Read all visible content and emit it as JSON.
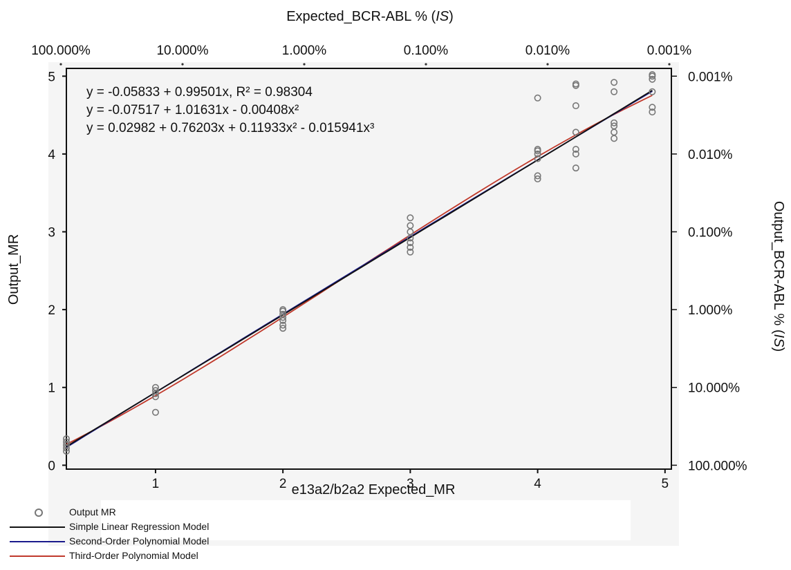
{
  "chart_data": {
    "type": "scatter",
    "xlabel": "e13a2/b2a2 Expected_MR",
    "ylabel": "Output_MR",
    "top_axis_label": "Expected_BCR-ABL % (IS)",
    "right_axis_label": "Output_BCR-ABL % (IS)",
    "xlim": [
      0.3,
      5.05
    ],
    "ylim": [
      -0.05,
      5.1
    ],
    "x_ticks": [
      "1",
      "2",
      "3",
      "4",
      "5"
    ],
    "x_tick_values": [
      1,
      2,
      3,
      4,
      5
    ],
    "y_ticks": [
      "0",
      "1",
      "2",
      "3",
      "4",
      "5"
    ],
    "y_tick_values": [
      0,
      1,
      2,
      3,
      4,
      5
    ],
    "top_ticks": [
      "100.000%",
      "10.000%",
      "1.000%",
      "0.100%",
      "0.010%",
      "0.001%"
    ],
    "top_tick_values": [
      0,
      1,
      2,
      3,
      4,
      5
    ],
    "right_ticks": [
      "0.001%",
      "0.010%",
      "0.100%",
      "1.000%",
      "10.000%",
      "100.000%"
    ],
    "right_tick_values": [
      5,
      4,
      3,
      2,
      1,
      0
    ],
    "equations": [
      "y = -0.05833 + 0.99501x, R² = 0.98304",
      "y = -0.07517 + 1.01631x -  0.00408x²",
      "y = 0.02982 + 0.76203x + 0.11933x² - 0.015941x³"
    ],
    "series": [
      {
        "name": "Output MR",
        "kind": "points",
        "color": "#777777",
        "points": [
          [
            0.3,
            0.18
          ],
          [
            0.3,
            0.22
          ],
          [
            0.3,
            0.26
          ],
          [
            0.3,
            0.3
          ],
          [
            0.3,
            0.34
          ],
          [
            1,
            0.68
          ],
          [
            1,
            0.88
          ],
          [
            1,
            0.92
          ],
          [
            1,
            0.96
          ],
          [
            1,
            1.0
          ],
          [
            2,
            1.76
          ],
          [
            2,
            1.8
          ],
          [
            2,
            1.86
          ],
          [
            2,
            1.9
          ],
          [
            2,
            1.94
          ],
          [
            2,
            1.98
          ],
          [
            2,
            2.0
          ],
          [
            3,
            2.74
          ],
          [
            3,
            2.8
          ],
          [
            3,
            2.86
          ],
          [
            3,
            2.92
          ],
          [
            3,
            3.0
          ],
          [
            3,
            3.08
          ],
          [
            3,
            3.18
          ],
          [
            4,
            3.68
          ],
          [
            4,
            3.72
          ],
          [
            4,
            3.94
          ],
          [
            4,
            4.0
          ],
          [
            4,
            4.04
          ],
          [
            4,
            4.06
          ],
          [
            4,
            4.72
          ],
          [
            4.3,
            3.82
          ],
          [
            4.3,
            4.0
          ],
          [
            4.3,
            4.06
          ],
          [
            4.3,
            4.28
          ],
          [
            4.3,
            4.62
          ],
          [
            4.3,
            4.88
          ],
          [
            4.3,
            4.9
          ],
          [
            4.6,
            4.2
          ],
          [
            4.6,
            4.28
          ],
          [
            4.6,
            4.36
          ],
          [
            4.6,
            4.4
          ],
          [
            4.6,
            4.8
          ],
          [
            4.6,
            4.92
          ],
          [
            4.9,
            4.54
          ],
          [
            4.9,
            4.6
          ],
          [
            4.9,
            4.8
          ],
          [
            4.9,
            4.96
          ],
          [
            4.9,
            5.0
          ],
          [
            4.9,
            5.02
          ]
        ]
      },
      {
        "name": "Simple Linear Regression Model",
        "kind": "line",
        "color": "#111111",
        "coefficients": [
          -0.05833,
          0.99501
        ]
      },
      {
        "name": "Second-Order Polynomial Model",
        "kind": "line",
        "color": "#1a1a8c",
        "coefficients": [
          -0.07517,
          1.01631,
          -0.00408
        ]
      },
      {
        "name": "Third-Order Polynomial Model",
        "kind": "line",
        "color": "#c0392b",
        "coefficients": [
          0.02982,
          0.76203,
          0.11933,
          -0.015941
        ]
      }
    ],
    "fit_range": [
      0.3,
      4.9
    ],
    "grid": false,
    "legend_position": "bottom-left"
  }
}
